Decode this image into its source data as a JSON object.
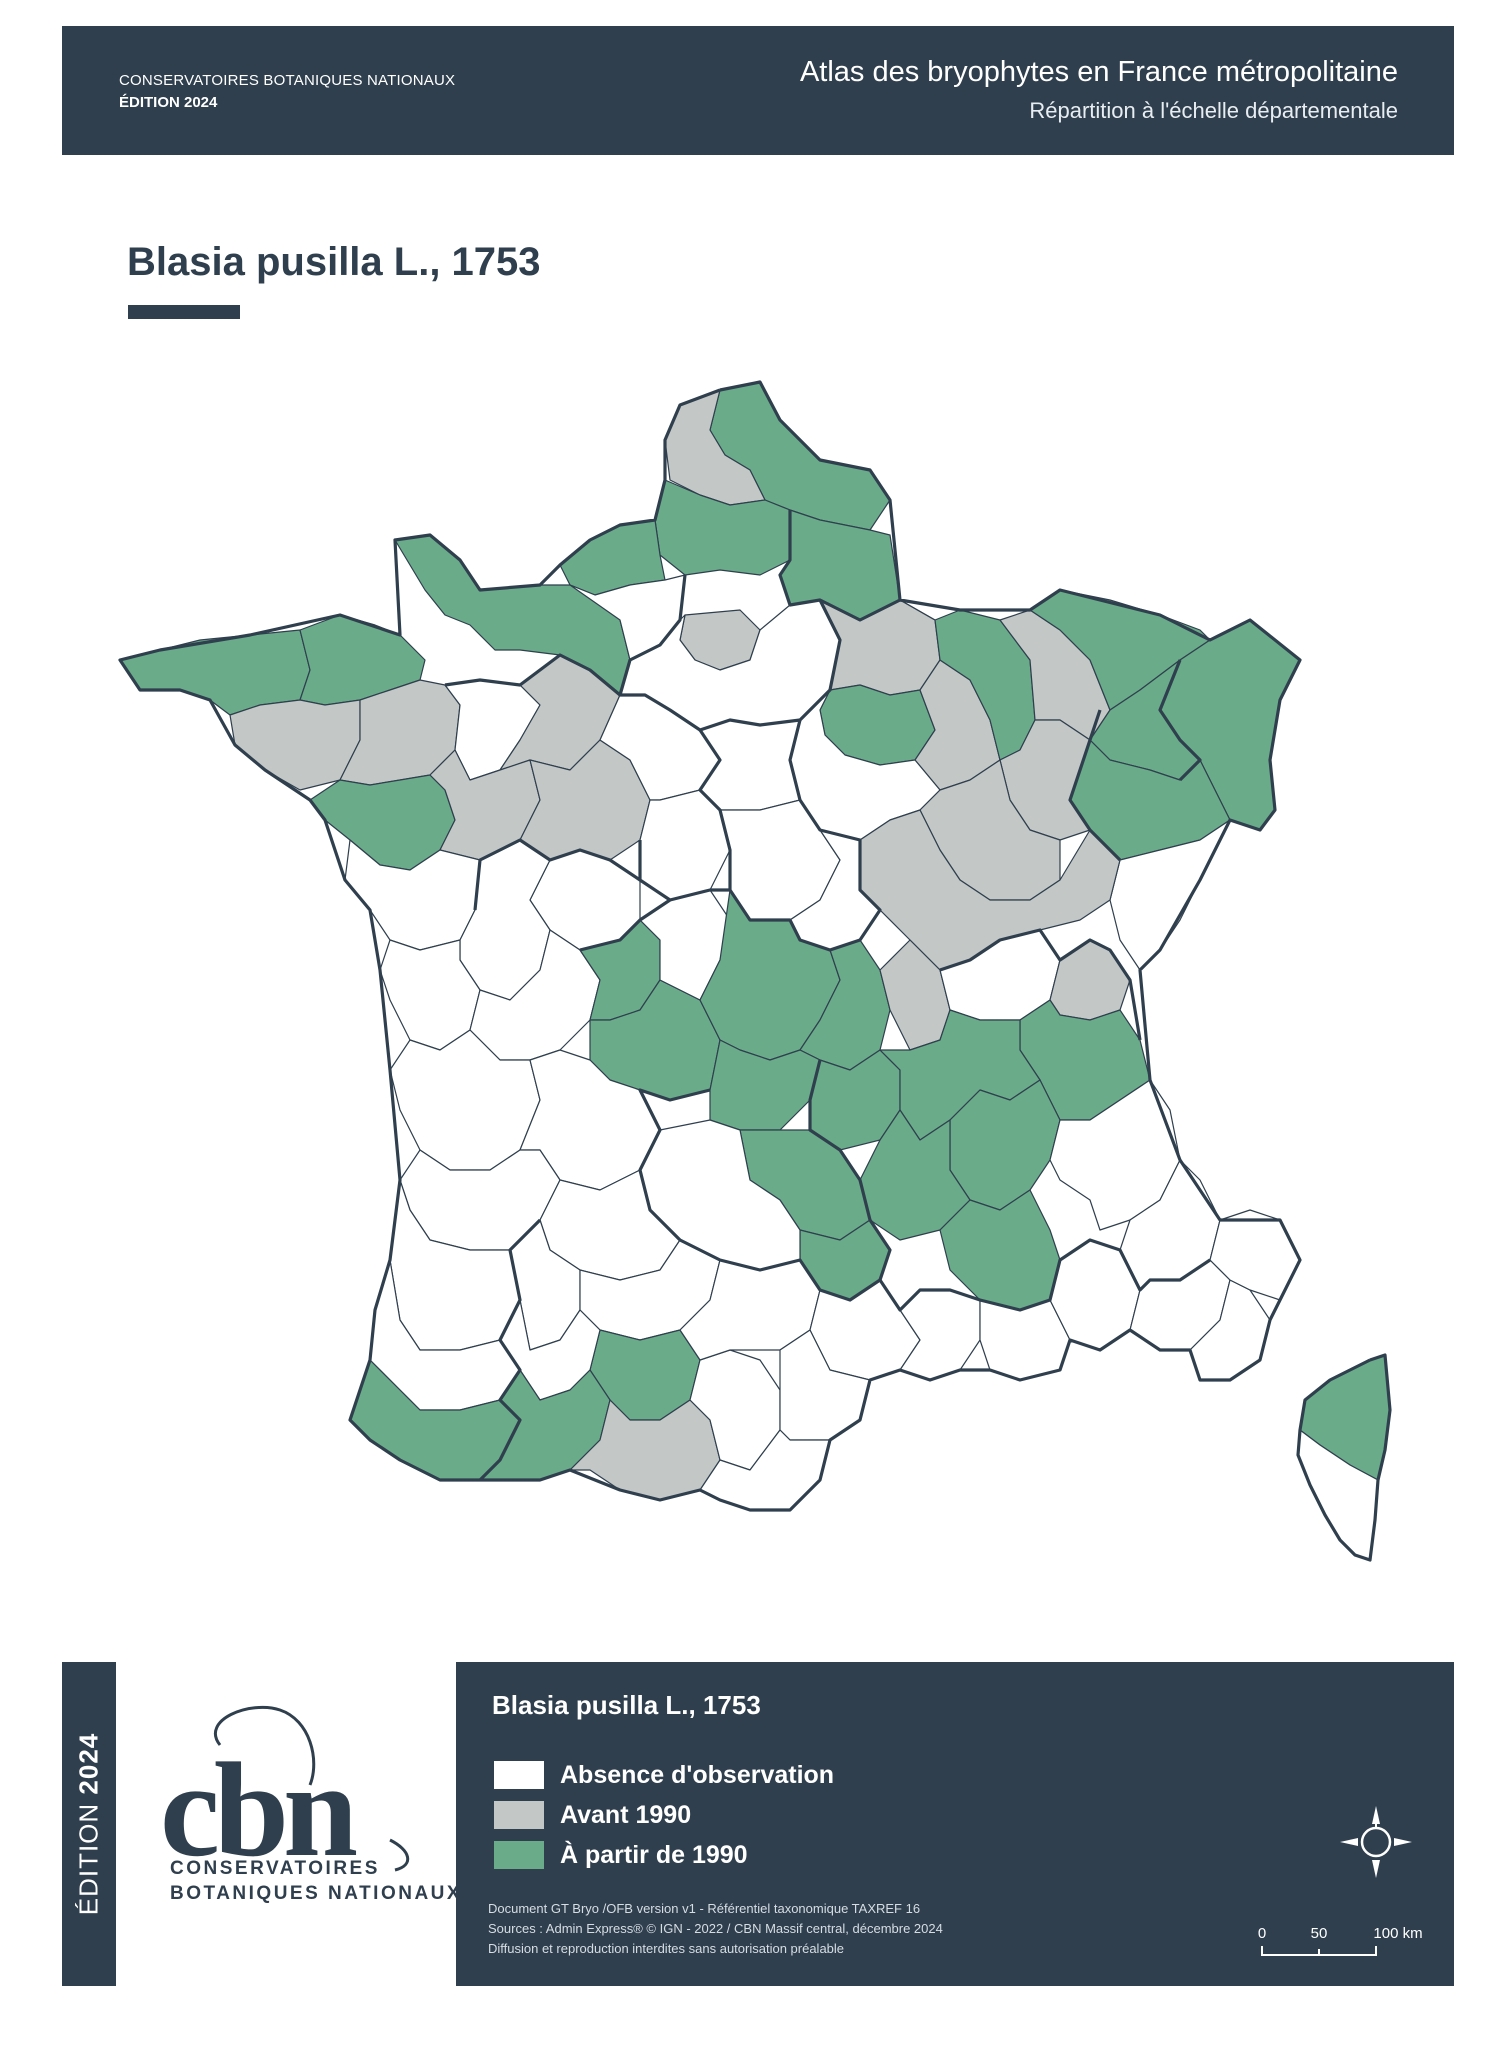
{
  "header": {
    "org": "CONSERVATOIRES BOTANIQUES NATIONAUX",
    "edition": "ÉDITION 2024",
    "title": "Atlas des bryophytes en France métropolitaine",
    "subtitle": "Répartition à l'échelle départementale"
  },
  "species": "Blasia pusilla L., 1753",
  "side_band": {
    "prefix": "ÉDITION",
    "year": "2024"
  },
  "logo": {
    "mark": "cbn",
    "line1": "CONSERVATOIRES",
    "line2": "BOTANIQUES NATIONAUX"
  },
  "legend": {
    "title": "Blasia pusilla L., 1753",
    "items": [
      {
        "label": "Absence d'observation",
        "color": "#ffffff"
      },
      {
        "label": "Avant 1990",
        "color": "#c3c7c6"
      },
      {
        "label": "À partir de 1990",
        "color": "#6aab8a"
      }
    ]
  },
  "credits": [
    "Document GT Bryo /OFB version v1 - Référentiel taxonomique TAXREF 16",
    "Sources : Admin Express® © IGN - 2022 / CBN Massif central, décembre 2024",
    "Diffusion et reproduction interdites sans autorisation préalable"
  ],
  "scale": {
    "labels": [
      "0",
      "50",
      "100 km"
    ]
  },
  "colors": {
    "dark": "#2f3f4e",
    "absence": "#ffffff",
    "before_1990": "#c3c7c6",
    "since_1990": "#6aab8a"
  }
}
